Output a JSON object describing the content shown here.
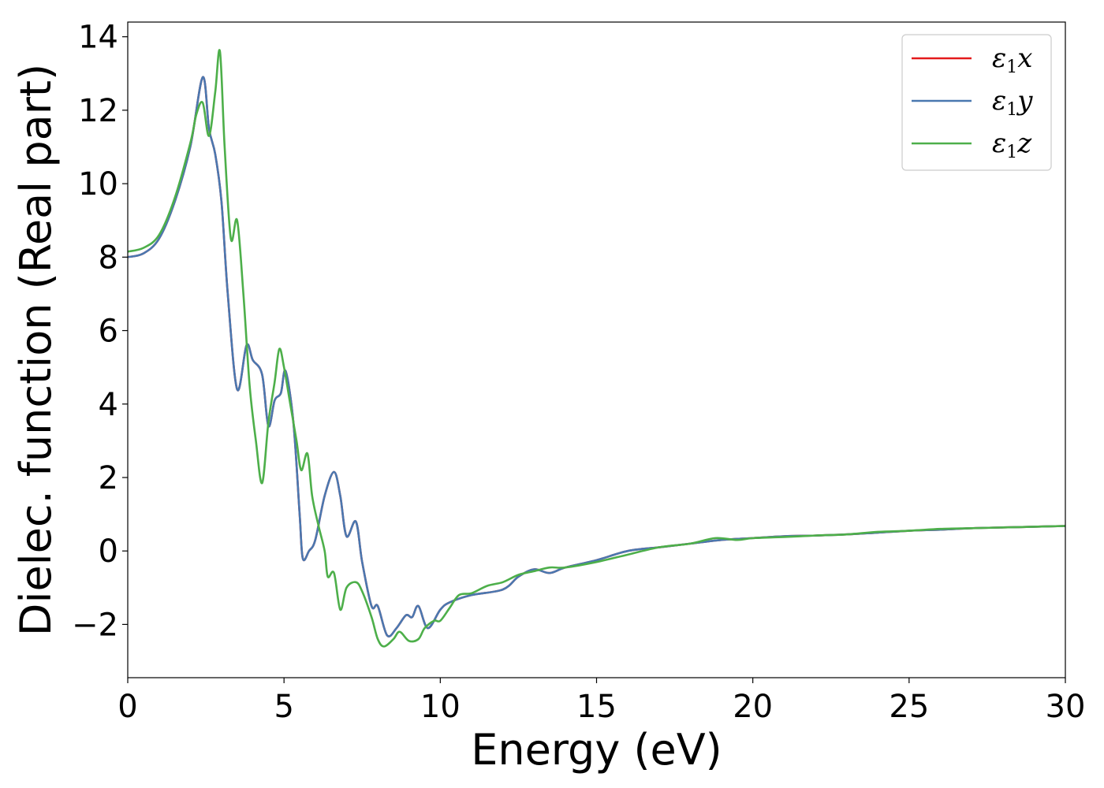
{
  "chart_data": {
    "type": "line",
    "title": "",
    "xlabel": "Energy (eV)",
    "ylabel": "Dielec. function (Real part)",
    "xlim": [
      0,
      30
    ],
    "ylim": [
      -3.45,
      14.4
    ],
    "xticks": [
      0,
      5,
      10,
      15,
      20,
      25,
      30
    ],
    "xtick_labels": [
      "0",
      "5",
      "10",
      "15",
      "20",
      "25",
      "30"
    ],
    "yticks": [
      -2,
      0,
      2,
      4,
      6,
      8,
      10,
      12,
      14
    ],
    "ytick_labels": [
      "−2",
      "0",
      "2",
      "4",
      "6",
      "8",
      "10",
      "12",
      "14"
    ],
    "grid": false,
    "legend_position": "top-right",
    "series": [
      {
        "name": "ε1x",
        "legend_base": "ε",
        "legend_sub": "1",
        "legend_var": "x",
        "color": "#e41a1c",
        "points": [
          [
            0,
            8.0
          ],
          [
            0.5,
            8.1
          ],
          [
            1.0,
            8.5
          ],
          [
            1.5,
            9.5
          ],
          [
            2.0,
            11.0
          ],
          [
            2.4,
            12.9
          ],
          [
            2.6,
            11.5
          ],
          [
            2.8,
            10.8
          ],
          [
            3.0,
            9.5
          ],
          [
            3.2,
            7.0
          ],
          [
            3.5,
            4.4
          ],
          [
            3.8,
            5.6
          ],
          [
            4.0,
            5.2
          ],
          [
            4.3,
            4.8
          ],
          [
            4.5,
            3.4
          ],
          [
            4.7,
            4.1
          ],
          [
            4.9,
            4.3
          ],
          [
            5.05,
            4.9
          ],
          [
            5.3,
            3.5
          ],
          [
            5.5,
            1.0
          ],
          [
            5.6,
            -0.2
          ],
          [
            5.8,
            0.0
          ],
          [
            6.0,
            0.3
          ],
          [
            6.3,
            1.5
          ],
          [
            6.6,
            2.15
          ],
          [
            6.8,
            1.5
          ],
          [
            7.0,
            0.4
          ],
          [
            7.3,
            0.8
          ],
          [
            7.5,
            -0.3
          ],
          [
            7.8,
            -1.5
          ],
          [
            8.0,
            -1.5
          ],
          [
            8.3,
            -2.3
          ],
          [
            8.6,
            -2.1
          ],
          [
            8.9,
            -1.75
          ],
          [
            9.1,
            -1.8
          ],
          [
            9.3,
            -1.5
          ],
          [
            9.6,
            -2.1
          ],
          [
            10.0,
            -1.6
          ],
          [
            10.3,
            -1.4
          ],
          [
            11.0,
            -1.2
          ],
          [
            12.0,
            -1.05
          ],
          [
            12.5,
            -0.7
          ],
          [
            13.0,
            -0.5
          ],
          [
            13.5,
            -0.6
          ],
          [
            14.0,
            -0.45
          ],
          [
            15.0,
            -0.25
          ],
          [
            16.0,
            0.0
          ],
          [
            17.0,
            0.1
          ],
          [
            18.0,
            0.2
          ],
          [
            19.0,
            0.3
          ],
          [
            20.0,
            0.35
          ],
          [
            21.0,
            0.4
          ],
          [
            22.0,
            0.42
          ],
          [
            23.0,
            0.45
          ],
          [
            24.0,
            0.5
          ],
          [
            25.0,
            0.55
          ],
          [
            26.0,
            0.58
          ],
          [
            27.0,
            0.62
          ],
          [
            28.0,
            0.64
          ],
          [
            29.0,
            0.66
          ],
          [
            30.0,
            0.68
          ]
        ]
      },
      {
        "name": "ε1y",
        "legend_base": "ε",
        "legend_sub": "1",
        "legend_var": "y",
        "color": "#4a78b0",
        "points": [
          [
            0,
            8.0
          ],
          [
            0.5,
            8.1
          ],
          [
            1.0,
            8.5
          ],
          [
            1.5,
            9.5
          ],
          [
            2.0,
            11.0
          ],
          [
            2.4,
            12.9
          ],
          [
            2.6,
            11.5
          ],
          [
            2.8,
            10.8
          ],
          [
            3.0,
            9.5
          ],
          [
            3.2,
            7.0
          ],
          [
            3.5,
            4.4
          ],
          [
            3.8,
            5.6
          ],
          [
            4.0,
            5.2
          ],
          [
            4.3,
            4.8
          ],
          [
            4.5,
            3.4
          ],
          [
            4.7,
            4.1
          ],
          [
            4.9,
            4.3
          ],
          [
            5.05,
            4.9
          ],
          [
            5.3,
            3.5
          ],
          [
            5.5,
            1.0
          ],
          [
            5.6,
            -0.2
          ],
          [
            5.8,
            0.0
          ],
          [
            6.0,
            0.3
          ],
          [
            6.3,
            1.5
          ],
          [
            6.6,
            2.15
          ],
          [
            6.8,
            1.5
          ],
          [
            7.0,
            0.4
          ],
          [
            7.3,
            0.8
          ],
          [
            7.5,
            -0.3
          ],
          [
            7.8,
            -1.5
          ],
          [
            8.0,
            -1.5
          ],
          [
            8.3,
            -2.3
          ],
          [
            8.6,
            -2.1
          ],
          [
            8.9,
            -1.75
          ],
          [
            9.1,
            -1.8
          ],
          [
            9.3,
            -1.5
          ],
          [
            9.6,
            -2.1
          ],
          [
            10.0,
            -1.6
          ],
          [
            10.3,
            -1.4
          ],
          [
            11.0,
            -1.2
          ],
          [
            12.0,
            -1.05
          ],
          [
            12.5,
            -0.7
          ],
          [
            13.0,
            -0.5
          ],
          [
            13.5,
            -0.6
          ],
          [
            14.0,
            -0.45
          ],
          [
            15.0,
            -0.25
          ],
          [
            16.0,
            0.0
          ],
          [
            17.0,
            0.1
          ],
          [
            18.0,
            0.2
          ],
          [
            19.0,
            0.3
          ],
          [
            20.0,
            0.35
          ],
          [
            21.0,
            0.4
          ],
          [
            22.0,
            0.42
          ],
          [
            23.0,
            0.45
          ],
          [
            24.0,
            0.5
          ],
          [
            25.0,
            0.55
          ],
          [
            26.0,
            0.58
          ],
          [
            27.0,
            0.62
          ],
          [
            28.0,
            0.64
          ],
          [
            29.0,
            0.66
          ],
          [
            30.0,
            0.68
          ]
        ]
      },
      {
        "name": "ε1z",
        "legend_base": "ε",
        "legend_sub": "1",
        "legend_var": "z",
        "color": "#4daf4a",
        "points": [
          [
            0,
            8.15
          ],
          [
            0.5,
            8.25
          ],
          [
            1.0,
            8.6
          ],
          [
            1.5,
            9.6
          ],
          [
            2.0,
            11.1
          ],
          [
            2.2,
            11.9
          ],
          [
            2.4,
            12.2
          ],
          [
            2.6,
            11.3
          ],
          [
            2.8,
            12.5
          ],
          [
            2.95,
            13.6
          ],
          [
            3.1,
            11.0
          ],
          [
            3.3,
            8.5
          ],
          [
            3.5,
            9.0
          ],
          [
            3.7,
            7.0
          ],
          [
            3.9,
            4.5
          ],
          [
            4.1,
            3.0
          ],
          [
            4.3,
            1.85
          ],
          [
            4.5,
            3.5
          ],
          [
            4.7,
            4.6
          ],
          [
            4.85,
            5.5
          ],
          [
            5.0,
            5.0
          ],
          [
            5.2,
            4.0
          ],
          [
            5.4,
            3.0
          ],
          [
            5.55,
            2.2
          ],
          [
            5.75,
            2.65
          ],
          [
            5.9,
            1.5
          ],
          [
            6.1,
            0.7
          ],
          [
            6.3,
            0.0
          ],
          [
            6.4,
            -0.7
          ],
          [
            6.6,
            -0.6
          ],
          [
            6.8,
            -1.6
          ],
          [
            7.0,
            -1.0
          ],
          [
            7.3,
            -0.85
          ],
          [
            7.5,
            -1.1
          ],
          [
            7.8,
            -1.8
          ],
          [
            8.0,
            -2.4
          ],
          [
            8.2,
            -2.6
          ],
          [
            8.5,
            -2.4
          ],
          [
            8.7,
            -2.2
          ],
          [
            9.0,
            -2.45
          ],
          [
            9.3,
            -2.4
          ],
          [
            9.5,
            -2.1
          ],
          [
            9.8,
            -1.9
          ],
          [
            10.0,
            -1.9
          ],
          [
            10.3,
            -1.55
          ],
          [
            10.6,
            -1.2
          ],
          [
            11.0,
            -1.15
          ],
          [
            11.5,
            -0.95
          ],
          [
            12.0,
            -0.85
          ],
          [
            12.5,
            -0.65
          ],
          [
            13.0,
            -0.55
          ],
          [
            13.5,
            -0.45
          ],
          [
            14.0,
            -0.45
          ],
          [
            15.0,
            -0.3
          ],
          [
            16.0,
            -0.1
          ],
          [
            17.0,
            0.1
          ],
          [
            18.0,
            0.2
          ],
          [
            18.8,
            0.35
          ],
          [
            19.5,
            0.3
          ],
          [
            20.0,
            0.35
          ],
          [
            21.0,
            0.38
          ],
          [
            22.0,
            0.42
          ],
          [
            23.0,
            0.45
          ],
          [
            24.0,
            0.52
          ],
          [
            25.0,
            0.55
          ],
          [
            26.0,
            0.6
          ],
          [
            27.0,
            0.62
          ],
          [
            28.0,
            0.64
          ],
          [
            29.0,
            0.66
          ],
          [
            30.0,
            0.68
          ]
        ]
      }
    ]
  }
}
